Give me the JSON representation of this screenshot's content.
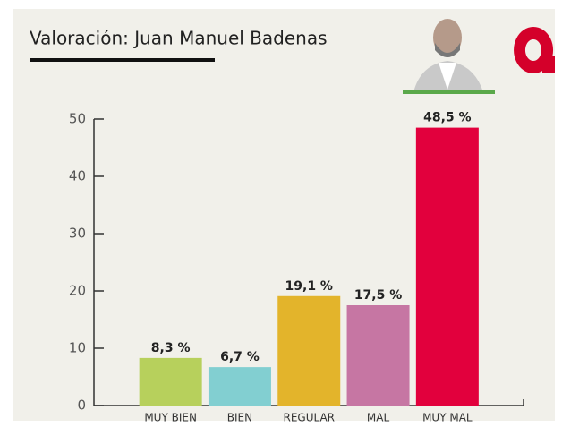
{
  "chart_data": {
    "type": "bar",
    "title": "Valoración: Juan Manuel Badenas",
    "categories": [
      "MUY BIEN",
      "BIEN",
      "REGULAR",
      "MAL",
      "MUY MAL"
    ],
    "values": [
      8.3,
      6.7,
      19.1,
      17.5,
      48.5
    ],
    "value_labels": [
      "8,3 %",
      "6,7 %",
      "19,1 %",
      "17,5 %",
      "48,5 %"
    ],
    "colors": [
      "#b7d05c",
      "#82cfd1",
      "#e3b42b",
      "#c676a3",
      "#e2003d"
    ],
    "ylim": [
      0,
      50
    ],
    "yticks": [
      0,
      10,
      20,
      30,
      40,
      50
    ]
  }
}
